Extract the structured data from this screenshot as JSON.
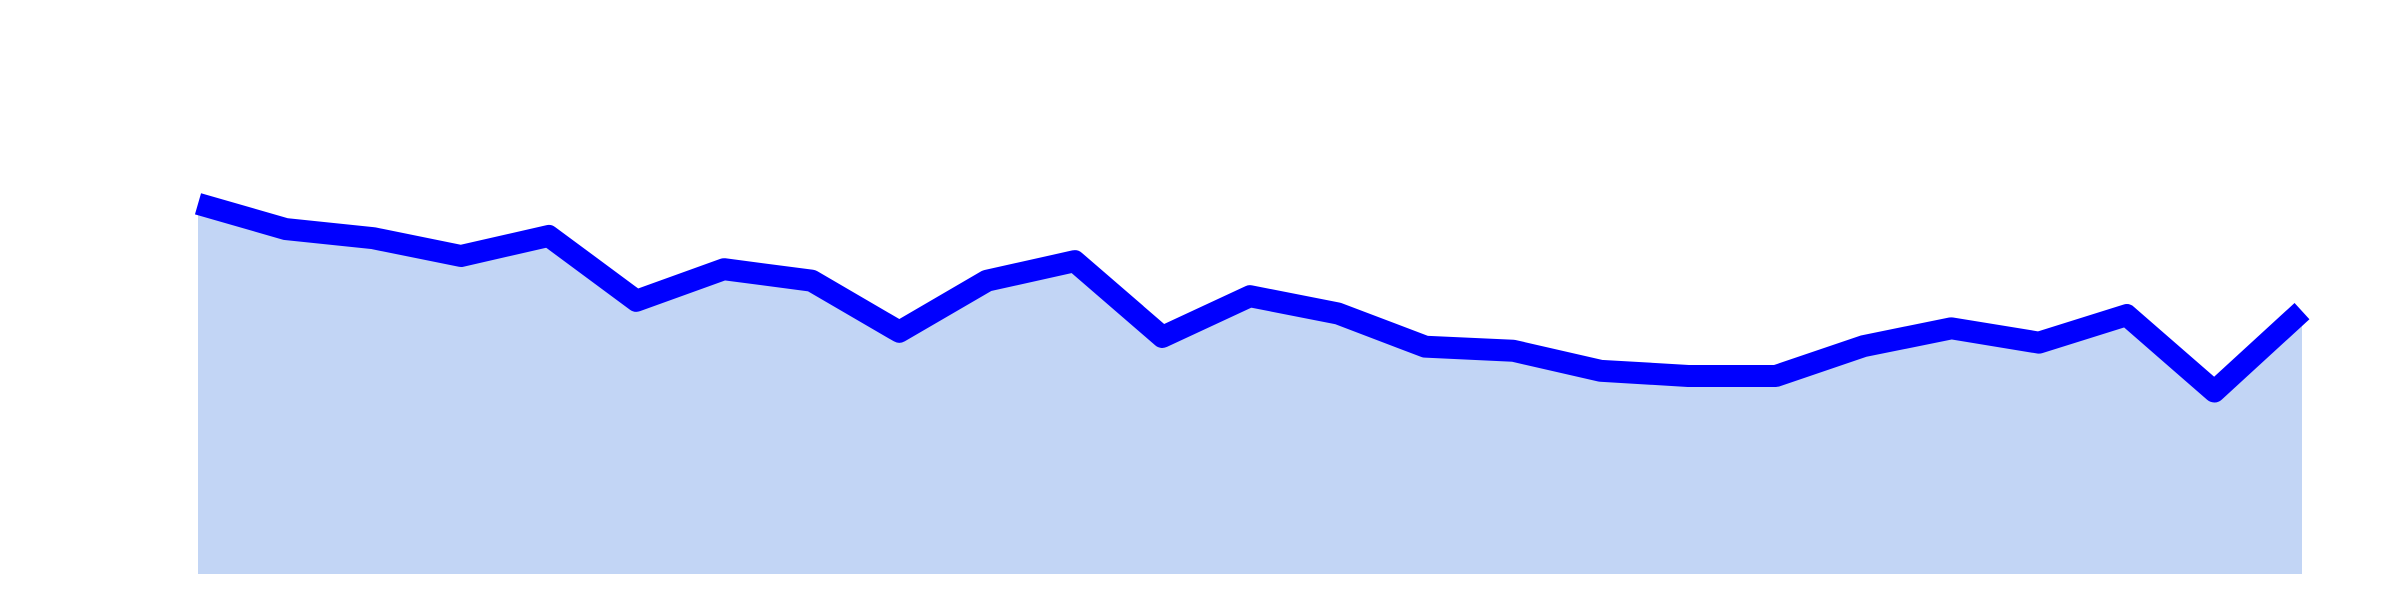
{
  "chart_data": {
    "type": "area",
    "title": "",
    "xlabel": "",
    "ylabel": "",
    "x": [
      0,
      1,
      2,
      3,
      4,
      5,
      6,
      7,
      8,
      9,
      10,
      11,
      12,
      13,
      14,
      15,
      16,
      17,
      18,
      19,
      20,
      21,
      22,
      23,
      24
    ],
    "series": [
      {
        "values": [
          64.5,
          60.1,
          58.5,
          55.4,
          58.9,
          47.6,
          53.1,
          51.1,
          42.2,
          51.1,
          54.5,
          41.3,
          48.4,
          45.4,
          39.6,
          38.9,
          35.4,
          34.5,
          34.5,
          39.7,
          42.8,
          40.3,
          45.1,
          31.8,
          45.8
        ]
      }
    ],
    "ylim": [
      0,
      100
    ],
    "grid": false,
    "legend": "none",
    "axes_visible": false,
    "colors": {
      "line": "#0000ff",
      "fill": "#c2d5f5",
      "background": "#ffffff"
    }
  }
}
